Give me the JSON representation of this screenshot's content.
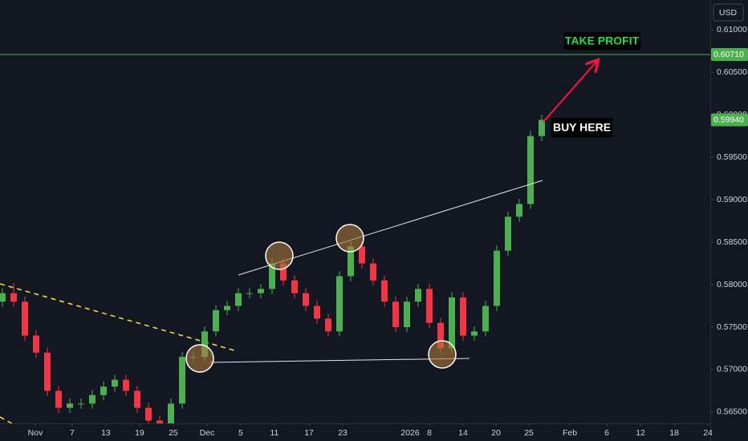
{
  "chart_data": {
    "type": "candlestick",
    "currency": "USD",
    "up_color": "#4caf50",
    "down_color": "#f23645",
    "xlim": [
      -0.214,
      63.0
    ],
    "xticks": [
      {
        "value": 2.93,
        "label": "Nov"
      },
      {
        "value": 6.21,
        "label": "7"
      },
      {
        "value": 9.21,
        "label": "13"
      },
      {
        "value": 12.21,
        "label": "19"
      },
      {
        "value": 15.21,
        "label": "25"
      },
      {
        "value": 18.21,
        "label": "Dec"
      },
      {
        "value": 21.21,
        "label": "5"
      },
      {
        "value": 24.21,
        "label": "11"
      },
      {
        "value": 27.29,
        "label": "17"
      },
      {
        "value": 30.29,
        "label": "23"
      },
      {
        "value": 36.29,
        "label": "2026"
      },
      {
        "value": 38,
        "label": "8"
      },
      {
        "value": 41,
        "label": "14"
      },
      {
        "value": 43.93,
        "label": "20"
      },
      {
        "value": 46.86,
        "label": "25"
      },
      {
        "value": 50.5,
        "label": "Feb"
      },
      {
        "value": 53.79,
        "label": "6"
      },
      {
        "value": 56.79,
        "label": "12"
      },
      {
        "value": 59.79,
        "label": "18"
      },
      {
        "value": 62.79,
        "label": "24"
      }
    ],
    "ylim": [
      0.56367,
      0.61352
    ],
    "yticks": [
      {
        "value": 0.61,
        "label": "0.61000"
      },
      {
        "value": 0.605,
        "label": "0.60500"
      },
      {
        "value": 0.6,
        "label": "0.60000"
      },
      {
        "value": 0.595,
        "label": "0.59500"
      },
      {
        "value": 0.59,
        "label": "0.59000"
      },
      {
        "value": 0.585,
        "label": "0.58500"
      },
      {
        "value": 0.58,
        "label": "0.58000"
      },
      {
        "value": 0.575,
        "label": "0.57500"
      },
      {
        "value": 0.57,
        "label": "0.57000"
      },
      {
        "value": 0.565,
        "label": "0.56500"
      }
    ],
    "take_profit_level": {
      "value": 0.6071,
      "label": "0.60710",
      "color": "#4caf50"
    },
    "last_price": {
      "value": 0.5994,
      "label": "0.59940"
    },
    "annotations": {
      "take_profit": "TAKE PROFIT",
      "buy_here": "BUY HERE"
    },
    "open": [
      0.578,
      0.579,
      0.578,
      0.574,
      0.572,
      0.5675,
      0.5655,
      0.566,
      0.566,
      0.567,
      0.568,
      0.5688,
      0.5675,
      0.5655,
      0.564,
      0.5635,
      0.566,
      0.5715,
      0.5715,
      0.5745,
      0.577,
      0.5775,
      0.579,
      0.579,
      0.5795,
      0.5825,
      0.5805,
      0.579,
      0.5775,
      0.576,
      0.5745,
      0.581,
      0.5845,
      0.5825,
      0.5805,
      0.578,
      0.575,
      0.578,
      0.5795,
      0.5755,
      0.5725,
      0.5785,
      0.574,
      0.5745,
      0.5775,
      0.584,
      0.588,
      0.5895,
      0.5975
    ],
    "high": [
      0.5796,
      0.5802,
      0.5786,
      0.5746,
      0.5726,
      0.5681,
      0.5666,
      0.5666,
      0.5676,
      0.5686,
      0.5694,
      0.5694,
      0.5681,
      0.5661,
      0.5646,
      0.5666,
      0.5721,
      0.5721,
      0.5751,
      0.5776,
      0.5781,
      0.5796,
      0.5796,
      0.5801,
      0.5831,
      0.5831,
      0.5811,
      0.5796,
      0.5781,
      0.5766,
      0.5816,
      0.5851,
      0.5851,
      0.5831,
      0.5811,
      0.5786,
      0.5786,
      0.5801,
      0.5801,
      0.5761,
      0.5791,
      0.5791,
      0.5751,
      0.5781,
      0.5846,
      0.5886,
      0.5901,
      0.5981,
      0.6
    ],
    "low": [
      0.5774,
      0.5774,
      0.5734,
      0.5714,
      0.5669,
      0.5649,
      0.5649,
      0.5654,
      0.5654,
      0.5664,
      0.5674,
      0.5669,
      0.5649,
      0.5634,
      0.5629,
      0.5629,
      0.5654,
      0.5709,
      0.5709,
      0.5739,
      0.5764,
      0.5769,
      0.5784,
      0.5784,
      0.5789,
      0.5799,
      0.5784,
      0.5769,
      0.5754,
      0.5739,
      0.5739,
      0.5804,
      0.5819,
      0.5799,
      0.5774,
      0.5744,
      0.5744,
      0.5774,
      0.5749,
      0.5719,
      0.5719,
      0.5734,
      0.5734,
      0.5739,
      0.5769,
      0.5834,
      0.5874,
      0.5889,
      0.5969
    ],
    "close": [
      0.579,
      0.578,
      0.574,
      0.572,
      0.5675,
      0.5655,
      0.566,
      0.566,
      0.567,
      0.568,
      0.5688,
      0.5675,
      0.5655,
      0.564,
      0.5635,
      0.566,
      0.5715,
      0.5715,
      0.5745,
      0.577,
      0.5775,
      0.579,
      0.579,
      0.5795,
      0.5825,
      0.5805,
      0.579,
      0.5775,
      0.576,
      0.5745,
      0.581,
      0.5845,
      0.5825,
      0.5805,
      0.578,
      0.575,
      0.578,
      0.5795,
      0.5755,
      0.5725,
      0.5785,
      0.574,
      0.5745,
      0.5775,
      0.584,
      0.588,
      0.5895,
      0.5975,
      0.5994
    ]
  }
}
